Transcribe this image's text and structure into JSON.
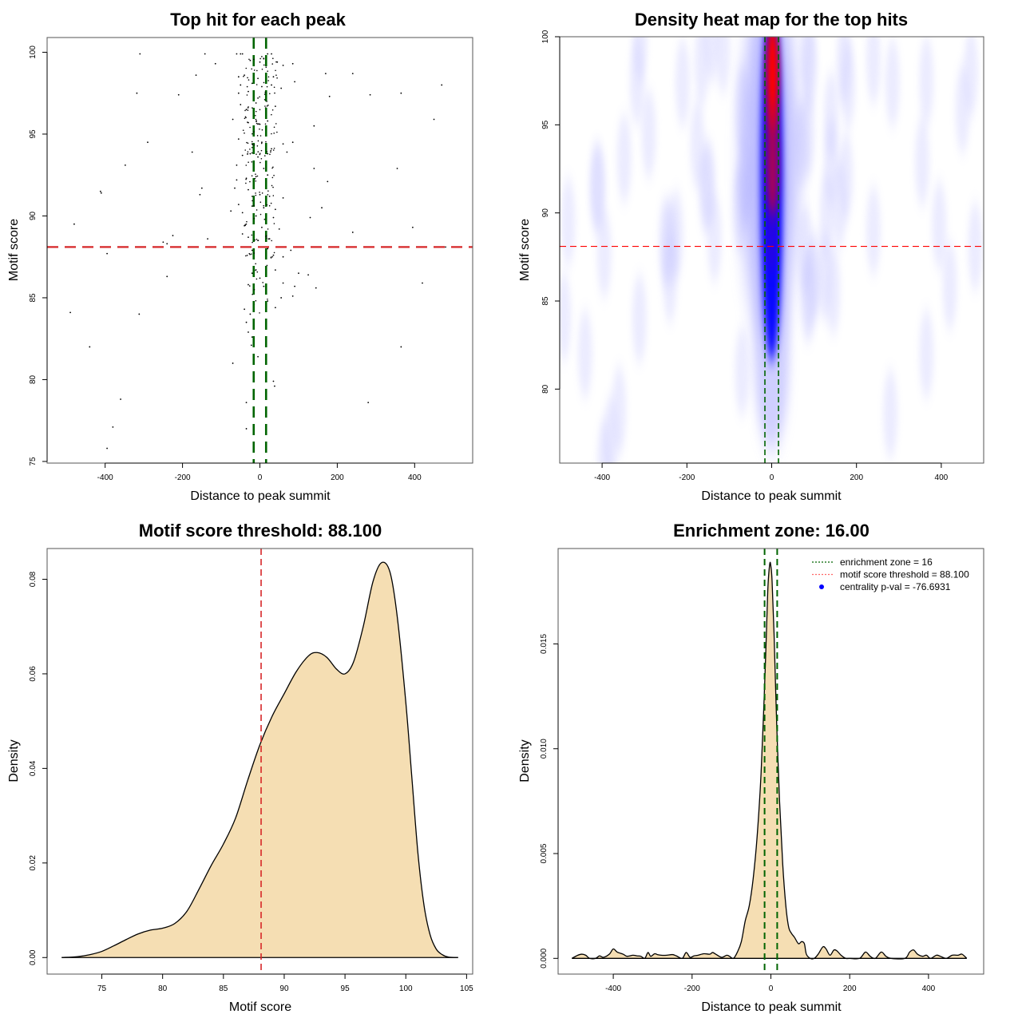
{
  "chart_data": [
    {
      "type": "scatter",
      "panel": "top-left",
      "title": "Top hit for each peak",
      "xlabel": "Distance to peak summit",
      "ylabel": "Motif score",
      "xlim": [
        -550,
        550
      ],
      "ylim": [
        74.9,
        100.9
      ],
      "xticks": [
        -400,
        -200,
        0,
        200,
        400
      ],
      "xtick_labels": [
        "-400",
        "-200",
        "0",
        "200",
        "400"
      ],
      "yticks": [
        75,
        80,
        85,
        90,
        95,
        100
      ],
      "ytick_labels": [
        "75",
        "80",
        "85",
        "90",
        "95",
        "100"
      ],
      "hlines": [
        {
          "y": 88.1,
          "color": "#d62728",
          "style": "dashed",
          "label": "motif score threshold"
        }
      ],
      "vlines": [
        {
          "x": -16,
          "color": "#006400",
          "style": "dashed"
        },
        {
          "x": 16,
          "color": "#006400",
          "style": "dashed"
        }
      ],
      "points": [
        [
          -310,
          99.9
        ],
        [
          -142,
          99.9
        ],
        [
          -60,
          99.9
        ],
        [
          -50,
          99.9
        ],
        [
          -45,
          99.9
        ],
        [
          20,
          99.9
        ],
        [
          30,
          99.9
        ],
        [
          85,
          99.3
        ],
        [
          -115,
          99.3
        ],
        [
          -25,
          99.5
        ],
        [
          0,
          99.4
        ],
        [
          10,
          99.6
        ],
        [
          45,
          99.4
        ],
        [
          60,
          99.2
        ],
        [
          -165,
          98.6
        ],
        [
          170,
          98.7
        ],
        [
          240,
          98.7
        ],
        [
          -55,
          98.5
        ],
        [
          -40,
          98.6
        ],
        [
          -5,
          98.4
        ],
        [
          35,
          98.5
        ],
        [
          -50,
          98.0
        ],
        [
          -20,
          98.1
        ],
        [
          5,
          97.9
        ],
        [
          30,
          98.0
        ],
        [
          55,
          97.8
        ],
        [
          90,
          98.2
        ],
        [
          470,
          98.0
        ],
        [
          -318,
          97.5
        ],
        [
          -210,
          97.4
        ],
        [
          -55,
          97.5
        ],
        [
          -30,
          97.6
        ],
        [
          -5,
          97.2
        ],
        [
          180,
          97.3
        ],
        [
          285,
          97.4
        ],
        [
          365,
          97.5
        ],
        [
          -50,
          96.8
        ],
        [
          -35,
          96.5
        ],
        [
          -10,
          96.9
        ],
        [
          15,
          96.6
        ],
        [
          40,
          96.7
        ],
        [
          -70,
          95.9
        ],
        [
          -30,
          95.7
        ],
        [
          0,
          95.6
        ],
        [
          20,
          95.8
        ],
        [
          140,
          95.5
        ],
        [
          450,
          95.9
        ],
        [
          -290,
          94.5
        ],
        [
          -55,
          94.7
        ],
        [
          -20,
          94.4
        ],
        [
          5,
          94.5
        ],
        [
          60,
          94.4
        ],
        [
          85,
          94.5
        ],
        [
          30,
          94.1
        ],
        [
          -175,
          93.9
        ],
        [
          -45,
          93.7
        ],
        [
          -25,
          93.8
        ],
        [
          -5,
          93.6
        ],
        [
          20,
          93.8
        ],
        [
          70,
          93.9
        ],
        [
          -348,
          93.1
        ],
        [
          -60,
          93.1
        ],
        [
          -15,
          93.0
        ],
        [
          10,
          92.9
        ],
        [
          140,
          92.9
        ],
        [
          355,
          92.9
        ],
        [
          -60,
          92.2
        ],
        [
          -35,
          92.3
        ],
        [
          -10,
          92.4
        ],
        [
          20,
          92.5
        ],
        [
          175,
          92.1
        ],
        [
          -412,
          91.5
        ],
        [
          -410,
          91.4
        ],
        [
          -150,
          91.7
        ],
        [
          -155,
          91.3
        ],
        [
          -65,
          91.7
        ],
        [
          -30,
          91.6
        ],
        [
          0,
          91.3
        ],
        [
          25,
          91.2
        ],
        [
          60,
          91.1
        ],
        [
          -55,
          90.7
        ],
        [
          -20,
          90.6
        ],
        [
          10,
          90.5
        ],
        [
          40,
          90.4
        ],
        [
          160,
          90.5
        ],
        [
          -75,
          90.3
        ],
        [
          -45,
          90.2
        ],
        [
          -10,
          90.0
        ],
        [
          35,
          89.9
        ],
        [
          130,
          89.9
        ],
        [
          -480,
          89.5
        ],
        [
          -40,
          89.4
        ],
        [
          5,
          89.3
        ],
        [
          240,
          89.0
        ],
        [
          395,
          89.3
        ],
        [
          50,
          89.2
        ],
        [
          -225,
          88.8
        ],
        [
          -135,
          88.6
        ],
        [
          -45,
          88.9
        ],
        [
          -30,
          88.7
        ],
        [
          -5,
          88.5
        ],
        [
          25,
          88.6
        ],
        [
          -240,
          88.3
        ],
        [
          -250,
          88.4
        ],
        [
          -395,
          87.7
        ],
        [
          -20,
          87.9
        ],
        [
          20,
          88.0
        ],
        [
          80,
          87.9
        ],
        [
          35,
          87.6
        ],
        [
          60,
          87.5
        ],
        [
          480,
          88.1
        ],
        [
          -240,
          86.3
        ],
        [
          -20,
          86.5
        ],
        [
          0,
          86.2
        ],
        [
          40,
          86.7
        ],
        [
          100,
          86.5
        ],
        [
          125,
          86.4
        ],
        [
          420,
          85.9
        ],
        [
          -30,
          85.8
        ],
        [
          10,
          85.7
        ],
        [
          60,
          85.9
        ],
        [
          90,
          85.7
        ],
        [
          145,
          85.6
        ],
        [
          -490,
          84.1
        ],
        [
          -312,
          84.0
        ],
        [
          -40,
          84.3
        ],
        [
          -25,
          84.0
        ],
        [
          -15,
          84.6
        ],
        [
          40,
          84.4
        ],
        [
          85,
          85.1
        ],
        [
          55,
          85.0
        ],
        [
          20,
          84.8
        ],
        [
          -35,
          83.5
        ],
        [
          -30,
          82.9
        ],
        [
          -20,
          82.6
        ],
        [
          -22,
          82.1
        ],
        [
          365,
          82.0
        ],
        [
          -440,
          82.0
        ],
        [
          -70,
          81.0
        ],
        [
          -5,
          81.4
        ],
        [
          -360,
          78.8
        ],
        [
          -35,
          78.6
        ],
        [
          280,
          78.6
        ],
        [
          35,
          79.9
        ],
        [
          38,
          79.6
        ],
        [
          -380,
          77.1
        ],
        [
          -35,
          77.0
        ],
        [
          -395,
          75.8
        ]
      ]
    },
    {
      "type": "heatmap",
      "panel": "top-right",
      "title": "Density heat map for the top hits",
      "xlabel": "Distance to peak summit",
      "ylabel": "Motif score",
      "xlim": [
        -500,
        500
      ],
      "ylim": [
        75.8,
        100
      ],
      "xticks": [
        -400,
        -200,
        0,
        200,
        400
      ],
      "xtick_labels": [
        "-400",
        "-200",
        "0",
        "200",
        "400"
      ],
      "yticks": [
        80,
        85,
        90,
        95,
        100
      ],
      "ytick_labels": [
        "80",
        "85",
        "90",
        "95",
        "100"
      ],
      "colormap": [
        "#ffffff",
        "#0000ff",
        "#ff0000"
      ],
      "hlines": [
        {
          "y": 88.1,
          "color": "#ff0000",
          "style": "dashed"
        }
      ],
      "vlines": [
        {
          "x": -16,
          "color": "#006400",
          "style": "dashed"
        },
        {
          "x": 16,
          "color": "#006400",
          "style": "dashed"
        }
      ],
      "hotspots": [
        {
          "x": 2,
          "y": 97.8,
          "intensity": 1.0
        },
        {
          "x": 2,
          "y": 93.0,
          "intensity": 0.8
        },
        {
          "x": 0,
          "y": 88.5,
          "intensity": 0.5
        }
      ]
    },
    {
      "type": "area",
      "panel": "bottom-left",
      "title": "Motif score threshold: 88.100",
      "xlabel": "Motif score",
      "ylabel": "Density",
      "xlim": [
        70.5,
        105.5
      ],
      "ylim": [
        -0.0035,
        0.0865
      ],
      "xticks": [
        75,
        80,
        85,
        90,
        95,
        100,
        105
      ],
      "xtick_labels": [
        "75",
        "80",
        "85",
        "90",
        "95",
        "100",
        "105"
      ],
      "yticks": [
        0.0,
        0.02,
        0.04,
        0.06,
        0.08
      ],
      "ytick_labels": [
        "0.00",
        "0.02",
        "0.04",
        "0.06",
        "0.08"
      ],
      "fill_color": "#f5deb3",
      "vlines": [
        {
          "x": 88.1,
          "color": "#d62728",
          "style": "dashed"
        }
      ],
      "x": [
        71.7,
        73,
        74,
        75,
        76,
        77,
        78,
        79,
        80,
        81,
        82,
        83,
        84,
        85,
        86,
        87,
        88,
        89,
        90,
        91,
        92,
        92.7,
        93.5,
        94.3,
        95,
        95.7,
        96.5,
        97.3,
        98,
        98.7,
        99.3,
        100,
        100.5,
        101,
        101.5,
        102,
        102.5,
        103,
        103.5,
        104.3
      ],
      "y": [
        0.0,
        0.0002,
        0.0006,
        0.0013,
        0.0025,
        0.0038,
        0.005,
        0.0058,
        0.0062,
        0.0072,
        0.0098,
        0.0145,
        0.0195,
        0.024,
        0.0295,
        0.0375,
        0.045,
        0.051,
        0.0558,
        0.0605,
        0.0638,
        0.0645,
        0.0635,
        0.061,
        0.06,
        0.0625,
        0.07,
        0.0795,
        0.0835,
        0.0815,
        0.072,
        0.054,
        0.038,
        0.022,
        0.011,
        0.0048,
        0.0018,
        0.0006,
        0.0001,
        0.0
      ]
    },
    {
      "type": "area",
      "panel": "bottom-right",
      "title": "Enrichment zone: 16.00",
      "xlabel": "Distance to peak summit",
      "ylabel": "Density",
      "xlim": [
        -540,
        540
      ],
      "ylim": [
        -0.00075,
        0.01955
      ],
      "xticks": [
        -400,
        -200,
        0,
        200,
        400
      ],
      "xtick_labels": [
        "-400",
        "-200",
        "0",
        "200",
        "400"
      ],
      "yticks": [
        0.0,
        0.005,
        0.01,
        0.015
      ],
      "ytick_labels": [
        "0.000",
        "0.005",
        "0.010",
        "0.015"
      ],
      "fill_color": "#f5deb3",
      "vlines": [
        {
          "x": -16,
          "color": "#006400",
          "style": "dashed"
        },
        {
          "x": 16,
          "color": "#006400",
          "style": "dashed"
        }
      ],
      "legend": {
        "position": "top-right",
        "entries": [
          {
            "label": "enrichment zone = 16",
            "color": "#006400",
            "style": "dotted-line"
          },
          {
            "label": "motif score threshold = 88.100",
            "color": "#ff6666",
            "style": "dotted-line"
          },
          {
            "label": "centrality p-val = -76.6931",
            "color": "#0000ff",
            "style": "point"
          }
        ]
      },
      "x": [
        -505,
        -490,
        -480,
        -470,
        -460,
        -445,
        -435,
        -425,
        -410,
        -400,
        -390,
        -375,
        -365,
        -350,
        -340,
        -330,
        -320,
        -312,
        -305,
        -295,
        -288,
        -278,
        -265,
        -250,
        -240,
        -225,
        -215,
        -205,
        -195,
        -185,
        -170,
        -155,
        -148,
        -140,
        -125,
        -112,
        -105,
        -95,
        -85,
        -75,
        -65,
        -55,
        -45,
        -35,
        -25,
        -15,
        -8,
        -3,
        0,
        3,
        8,
        15,
        22,
        30,
        38,
        45,
        52,
        60,
        70,
        78,
        85,
        90,
        100,
        110,
        120,
        132,
        140,
        150,
        160,
        168,
        178,
        190,
        200,
        225,
        240,
        252,
        265,
        280,
        292,
        305,
        340,
        352,
        362,
        372,
        385,
        395,
        405,
        420,
        430,
        445,
        460,
        475,
        485,
        497
      ],
      "y": [
        0.0,
        0.00015,
        0.0002,
        0.00015,
        0.0,
        0.0,
        0.00012,
        5e-05,
        0.0002,
        0.00045,
        0.0003,
        0.0002,
        0.0001,
        0.00015,
        0.00012,
        0.0001,
        0.0,
        0.00028,
        0.0001,
        0.00022,
        0.00018,
        0.00015,
        0.00015,
        0.00018,
        0.00012,
        0.0,
        0.00028,
        5e-05,
        0.00012,
        0.00015,
        0.00022,
        0.0002,
        0.00028,
        0.0002,
        5e-05,
        0.00015,
        0.0001,
        0.0,
        0.0003,
        0.0008,
        0.0018,
        0.0025,
        0.0038,
        0.0058,
        0.0088,
        0.0135,
        0.0175,
        0.0188,
        0.0187,
        0.018,
        0.0155,
        0.011,
        0.0075,
        0.0045,
        0.0025,
        0.0015,
        0.0012,
        0.001,
        0.0007,
        0.0008,
        0.0007,
        0.0002,
        0.0,
        0.0,
        0.0002,
        0.00055,
        0.00045,
        0.00015,
        0.0004,
        0.00035,
        0.00015,
        0.0,
        0.0,
        0.0,
        0.0003,
        0.0001,
        0.0,
        0.0003,
        0.0001,
        0.0,
        0.0,
        0.0003,
        0.0004,
        0.0002,
        0.0001,
        0.00015,
        0.0,
        0.00015,
        0.0001,
        0.0,
        0.00015,
        0.00015,
        0.0002,
        0.0
      ]
    }
  ]
}
